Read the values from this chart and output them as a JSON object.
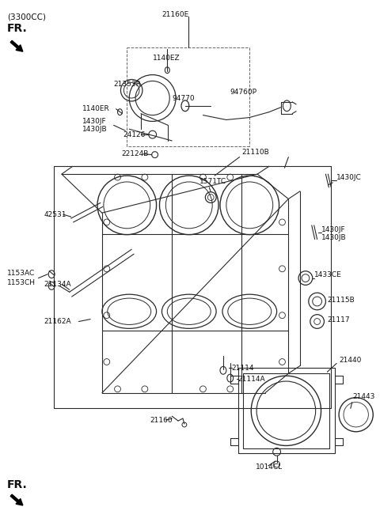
{
  "bg": "#ffffff",
  "lc": "#2a2a2a",
  "tc": "#111111",
  "fig_w": 4.8,
  "fig_h": 6.6,
  "dpi": 100,
  "labels": {
    "cc": "(3300CC)",
    "fr_top": "FR.",
    "fr_bot": "FR.",
    "21160E": "21160E",
    "1140EZ": "1140EZ",
    "21353R": "21353R",
    "94770": "94770",
    "94760P": "94760P",
    "21110B": "21110B",
    "1140ER": "1140ER",
    "1430JF_l": "1430JF",
    "1430JB_l": "1430JB",
    "24126": "24126",
    "22124B": "22124B",
    "42531": "42531",
    "21134A": "21134A",
    "1430JC": "1430JC",
    "1571TC": "1571TC",
    "1430JF_r": "1430JF",
    "1430JB_r": "1430JB",
    "1153AC": "1153AC",
    "1153CH": "1153CH",
    "21162A": "21162A",
    "1433CE": "1433CE",
    "21115B": "21115B",
    "21117": "21117",
    "21114": "21114",
    "21114A": "21114A",
    "21160": "21160",
    "21440": "21440",
    "21443": "21443",
    "1014CL": "1014CL"
  }
}
